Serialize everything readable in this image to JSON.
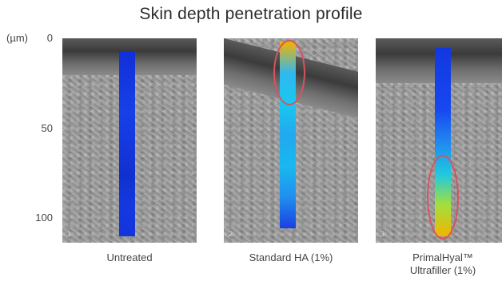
{
  "title": "Skin depth penetration profile",
  "y_axis": {
    "unit_label": "(µm)",
    "ticks": [
      "0",
      "50",
      "100"
    ]
  },
  "panels": [
    {
      "label": "Untreated",
      "number": "1",
      "highlight": "none",
      "bar_colors": [
        "#1030d8",
        "#1438e0",
        "#1840e8",
        "#1438e0",
        "#1030d0",
        "#1438e0",
        "#1234dc"
      ]
    },
    {
      "label": "Standard HA (1%)",
      "number": "2",
      "highlight": "top",
      "bar_colors": [
        "#f4b400",
        "#2fb8f0",
        "#18c8f0",
        "#22a8f0",
        "#18b8f0",
        "#2090f0",
        "#1a40e0"
      ]
    },
    {
      "label": "PrimalHyal™ Ultrafiller (1%)",
      "label_lines": [
        "PrimalHyal™",
        "Ultrafiller (1%)"
      ],
      "number": "3",
      "highlight": "bottom",
      "bar_colors": [
        "#1238e0",
        "#1440e8",
        "#1848f0",
        "#2088f0",
        "#20c8e0",
        "#a0e040",
        "#f4b400"
      ]
    }
  ],
  "colors": {
    "highlight_outline": "#d8525f",
    "background": "#ffffff"
  }
}
